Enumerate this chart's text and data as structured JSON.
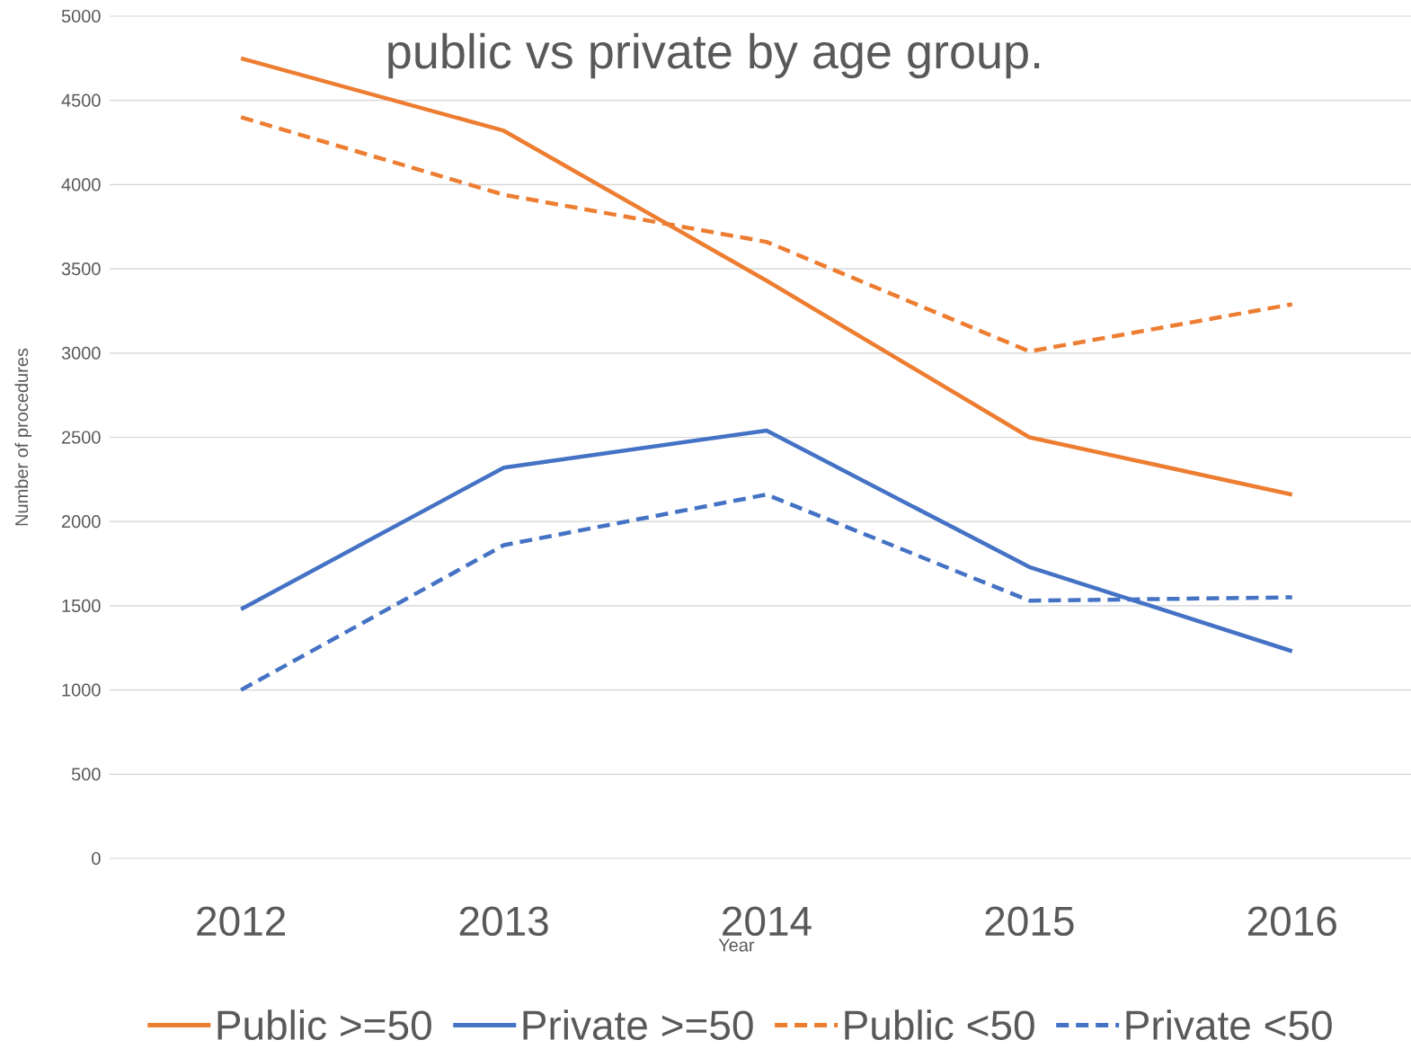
{
  "chart_data": {
    "type": "line",
    "title": "public vs private by age group.",
    "xlabel": "Year",
    "ylabel": "Number of procedures",
    "categories": [
      "2012",
      "2013",
      "2014",
      "2015",
      "2016"
    ],
    "series": [
      {
        "name": "Public >=50",
        "color": "#ed7d31",
        "line_style": "solid",
        "values": [
          4750,
          4320,
          3430,
          2500,
          2160
        ]
      },
      {
        "name": "Private >=50",
        "color": "#4472c4",
        "line_style": "solid",
        "values": [
          1480,
          2320,
          2540,
          1730,
          1230
        ]
      },
      {
        "name": "Public <50",
        "color": "#ed7d31",
        "line_style": "dashed",
        "values": [
          4400,
          3940,
          3660,
          3010,
          3290
        ]
      },
      {
        "name": "Private <50",
        "color": "#4472c4",
        "line_style": "dashed",
        "values": [
          1000,
          1860,
          2160,
          1530,
          1550
        ]
      }
    ],
    "ylim": [
      0,
      5000
    ],
    "yticks": [
      0,
      500,
      1000,
      1500,
      2000,
      2500,
      3000,
      3500,
      4000,
      4500,
      5000
    ],
    "grid": "y",
    "legend": "bottom",
    "marker": "none"
  }
}
